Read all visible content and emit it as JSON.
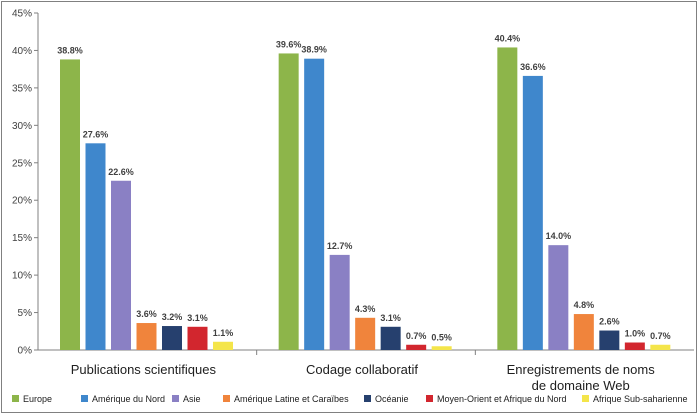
{
  "chart_data": {
    "type": "bar",
    "title": "",
    "xlabel": "",
    "ylabel": "",
    "ylim": [
      0,
      45
    ],
    "yticks": [
      "0%",
      "5%",
      "10%",
      "15%",
      "20%",
      "25%",
      "30%",
      "35%",
      "40%",
      "45%"
    ],
    "grid": false,
    "legend_position": "bottom",
    "categories": [
      [
        "Publications scientifiques"
      ],
      [
        "Codage collaboratif"
      ],
      [
        "Enregistrements de noms",
        "de domaine Web"
      ]
    ],
    "series": [
      {
        "name": "Europe",
        "color": "#8db54a",
        "values": [
          38.8,
          39.6,
          40.4
        ],
        "labels": [
          "38.8%",
          "39.6%",
          "40.4%"
        ]
      },
      {
        "name": "Amérique du Nord",
        "color": "#3f87cc",
        "values": [
          27.6,
          38.9,
          36.6
        ],
        "labels": [
          "27.6%",
          "38.9%",
          "36.6%"
        ]
      },
      {
        "name": "Asie",
        "color": "#8a80c4",
        "values": [
          22.6,
          12.7,
          14.0
        ],
        "labels": [
          "22.6%",
          "12.7%",
          "14.0%"
        ]
      },
      {
        "name": "Amérique Latine et Caraïbes",
        "color": "#f0843c",
        "values": [
          3.6,
          4.3,
          4.8
        ],
        "labels": [
          "3.6%",
          "4.3%",
          "4.8%"
        ]
      },
      {
        "name": "Océanie",
        "color": "#26406e",
        "values": [
          3.2,
          3.1,
          2.6
        ],
        "labels": [
          "3.2%",
          "3.1%",
          "2.6%"
        ]
      },
      {
        "name": "Moyen-Orient et Afrique du Nord",
        "color": "#d2262e",
        "values": [
          3.1,
          0.7,
          1.0
        ],
        "labels": [
          "3.1%",
          "0.7%",
          "1.0%"
        ]
      },
      {
        "name": "Afrique Sub-saharienne",
        "color": "#f4e54a",
        "values": [
          1.1,
          0.5,
          0.7
        ],
        "labels": [
          "1.1%",
          "0.5%",
          "0.7%"
        ]
      }
    ]
  }
}
